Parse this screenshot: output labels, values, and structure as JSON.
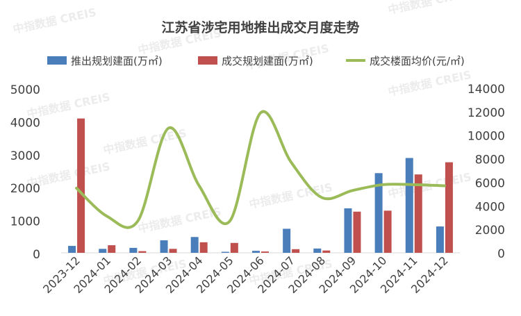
{
  "chart_data": {
    "type": "bar",
    "title": "江苏省涉宅用地推出成交月度走势",
    "watermark": "中指数据 CREIS",
    "categories": [
      "2023-12",
      "2024-01",
      "2024-02",
      "2024-03",
      "2024-04",
      "2024-05",
      "2024-06",
      "2024-07",
      "2024-08",
      "2024-09",
      "2024-10",
      "2024-11",
      "2024-12"
    ],
    "series": [
      {
        "name": "推出规划建面(万㎡)",
        "kind": "bar",
        "axis": "left",
        "color": "#4a7ebb",
        "values": [
          210,
          120,
          150,
          380,
          480,
          30,
          60,
          730,
          130,
          1350,
          2420,
          2880,
          800
        ]
      },
      {
        "name": "成交规划建面(万㎡)",
        "kind": "bar",
        "axis": "left",
        "color": "#c0504d",
        "values": [
          4080,
          230,
          50,
          120,
          320,
          300,
          40,
          110,
          70,
          1250,
          1280,
          2380,
          2750
        ]
      },
      {
        "name": "成交楼面均价(元/㎡)",
        "kind": "line",
        "axis": "right",
        "color": "#9bbb59",
        "values": [
          5500,
          3100,
          2700,
          10600,
          5700,
          2700,
          11900,
          7700,
          4700,
          5300,
          5800,
          5800,
          5700
        ]
      }
    ],
    "y_left": {
      "min": 0,
      "max": 5000,
      "ticks": [
        "0",
        "1000",
        "2000",
        "3000",
        "4000",
        "5000"
      ]
    },
    "y_right": {
      "min": 0,
      "max": 14000,
      "ticks": [
        "0",
        "2000",
        "4000",
        "6000",
        "8000",
        "10000",
        "12000",
        "14000"
      ]
    },
    "legend_position": "top",
    "grid": false
  }
}
